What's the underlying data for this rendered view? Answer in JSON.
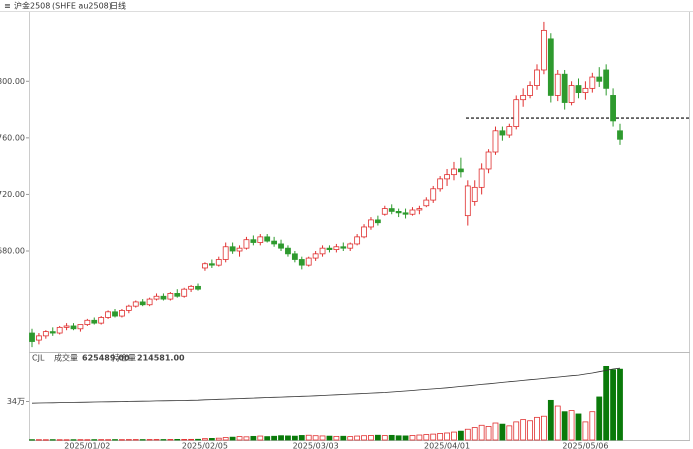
{
  "chart_data": [
    {
      "type": "candlestick",
      "title": "沪金2508",
      "subtitle": "(SHFE au2508)",
      "period": "日线",
      "categories": [
        null,
        null,
        null,
        null,
        null,
        null,
        null,
        null,
        "2025/01/02",
        null,
        null,
        null,
        null,
        null,
        null,
        null,
        null,
        null,
        null,
        null,
        null,
        null,
        null,
        null,
        null,
        "2025/02/05",
        null,
        null,
        null,
        null,
        null,
        null,
        null,
        null,
        null,
        null,
        null,
        null,
        null,
        null,
        null,
        "2025/03/03",
        null,
        null,
        null,
        null,
        null,
        null,
        null,
        null,
        null,
        null,
        null,
        null,
        null,
        null,
        null,
        null,
        null,
        null,
        "2025/04/01",
        null,
        null,
        null,
        null,
        null,
        null,
        null,
        null,
        null,
        null,
        null,
        null,
        null,
        null,
        null,
        null,
        null,
        null,
        null,
        "2025/05/06",
        null,
        null,
        null,
        null,
        null
      ],
      "open": [
        622,
        617,
        620,
        623,
        622,
        626,
        627,
        625,
        628,
        631,
        629,
        633,
        637,
        634,
        638,
        641,
        644,
        642,
        646,
        648,
        646,
        650,
        648,
        653,
        655,
        668,
        671,
        670,
        674,
        683,
        680,
        682,
        688,
        686,
        690,
        687,
        685,
        682,
        678,
        674,
        670,
        675,
        678,
        682,
        681,
        683,
        682,
        685,
        690,
        697,
        702,
        706,
        710,
        708,
        707,
        706,
        709,
        712,
        716,
        724,
        731,
        734,
        738,
        705,
        715,
        725,
        738,
        750,
        765,
        762,
        768,
        787,
        790,
        797,
        808,
        830,
        790,
        805,
        785,
        797,
        792,
        795,
        803,
        808,
        790,
        765
      ],
      "high": [
        625,
        622,
        624,
        626,
        627,
        629,
        629,
        628,
        632,
        633,
        634,
        638,
        639,
        639,
        642,
        645,
        646,
        647,
        650,
        650,
        651,
        653,
        654,
        656,
        657,
        672,
        674,
        676,
        686,
        686,
        684,
        690,
        691,
        692,
        692,
        690,
        688,
        684,
        680,
        676,
        676,
        680,
        684,
        684,
        685,
        686,
        686,
        692,
        699,
        704,
        705,
        712,
        713,
        710,
        710,
        711,
        712,
        718,
        726,
        733,
        738,
        743,
        746,
        730,
        730,
        742,
        752,
        768,
        768,
        770,
        790,
        795,
        800,
        812,
        842,
        834,
        808,
        808,
        800,
        802,
        800,
        806,
        810,
        812,
        795,
        770
      ],
      "low": [
        612,
        614,
        618,
        620,
        621,
        624,
        624,
        623,
        627,
        628,
        628,
        632,
        633,
        633,
        636,
        640,
        641,
        641,
        645,
        645,
        645,
        647,
        647,
        651,
        652,
        666,
        668,
        669,
        672,
        678,
        676,
        681,
        684,
        684,
        686,
        683,
        680,
        676,
        672,
        667,
        669,
        673,
        676,
        679,
        679,
        680,
        680,
        684,
        689,
        695,
        698,
        705,
        706,
        704,
        703,
        705,
        706,
        711,
        714,
        722,
        726,
        730,
        732,
        698,
        712,
        720,
        735,
        748,
        758,
        760,
        766,
        782,
        788,
        794,
        805,
        785,
        786,
        780,
        783,
        788,
        787,
        792,
        796,
        790,
        768,
        755
      ],
      "close": [
        616,
        620,
        623,
        622,
        626,
        627,
        625,
        628,
        631,
        629,
        633,
        637,
        634,
        638,
        641,
        644,
        642,
        646,
        648,
        646,
        650,
        648,
        653,
        655,
        653,
        671,
        670,
        674,
        683,
        680,
        682,
        688,
        686,
        690,
        687,
        685,
        682,
        678,
        674,
        670,
        675,
        678,
        682,
        681,
        683,
        682,
        685,
        690,
        697,
        702,
        700,
        710,
        708,
        707,
        706,
        709,
        710,
        716,
        724,
        731,
        734,
        738,
        736,
        726,
        725,
        738,
        750,
        765,
        762,
        768,
        787,
        790,
        797,
        808,
        836,
        790,
        805,
        785,
        797,
        792,
        795,
        803,
        800,
        795,
        772,
        759
      ],
      "up_color": "#e03030",
      "down_color": "#2e9a2e",
      "ylim": [
        610,
        849
      ],
      "yticks": [
        {
          "value": 680,
          "label": "680.00"
        },
        {
          "value": 720,
          "label": "720.00"
        },
        {
          "value": 760,
          "label": "760.00"
        },
        {
          "value": 800,
          "label": "800.00"
        }
      ],
      "reference_lines": [
        774
      ]
    },
    {
      "type": "volume",
      "indicator": "CJL",
      "series": [
        {
          "name": "成交量",
          "readout": "625489.00",
          "color": "#0a7a0a",
          "values": [
            3000,
            2800,
            2500,
            3200,
            2600,
            2400,
            2900,
            3100,
            2700,
            3300,
            3500,
            3000,
            3600,
            3200,
            3800,
            4000,
            3700,
            4200,
            4500,
            4100,
            4800,
            5200,
            5000,
            5600,
            6200,
            12000,
            14000,
            16000,
            22000,
            25000,
            30000,
            28000,
            32000,
            35000,
            30000,
            33000,
            38000,
            36000,
            34000,
            40000,
            42000,
            38000,
            36000,
            34000,
            32000,
            33000,
            30000,
            35000,
            38000,
            40000,
            42000,
            39000,
            41000,
            37000,
            36000,
            40000,
            44000,
            48000,
            52000,
            58000,
            62000,
            70000,
            78000,
            95000,
            110000,
            130000,
            120000,
            150000,
            140000,
            125000,
            160000,
            180000,
            170000,
            200000,
            210000,
            350000,
            300000,
            250000,
            260000,
            230000,
            160000,
            250000,
            380000,
            650000,
            620000,
            625489
          ]
        },
        {
          "name": "持仓量",
          "readout": "214581.00",
          "color": "#333333",
          "axis": "y2",
          "values": [
            110000,
            110400,
            110800,
            111200,
            111600,
            112000,
            112300,
            112700,
            113000,
            113400,
            113800,
            114100,
            114500,
            114800,
            115200,
            115600,
            116000,
            116300,
            116700,
            117000,
            117400,
            117800,
            118100,
            118500,
            118900,
            120000,
            120800,
            121500,
            122300,
            123000,
            123800,
            124500,
            125300,
            126000,
            126800,
            127500,
            128200,
            129000,
            129700,
            130500,
            131200,
            132000,
            133000,
            134000,
            135000,
            136000,
            137000,
            138000,
            139000,
            140000,
            141000,
            142000,
            143500,
            145000,
            146500,
            148000,
            149500,
            151000,
            152500,
            154000,
            156000,
            158000,
            160000,
            162000,
            164000,
            166000,
            168000,
            170000,
            172000,
            174000,
            176000,
            178000,
            180000,
            182000,
            184000,
            186000,
            188000,
            190000,
            192000,
            194000,
            197000,
            200000,
            204000,
            208000,
            212000,
            214581
          ]
        }
      ],
      "ylim": [
        0,
        680000
      ],
      "yticks": [
        {
          "value": 340000,
          "label": "34万"
        }
      ],
      "y2lim": [
        0,
        230000
      ]
    }
  ]
}
